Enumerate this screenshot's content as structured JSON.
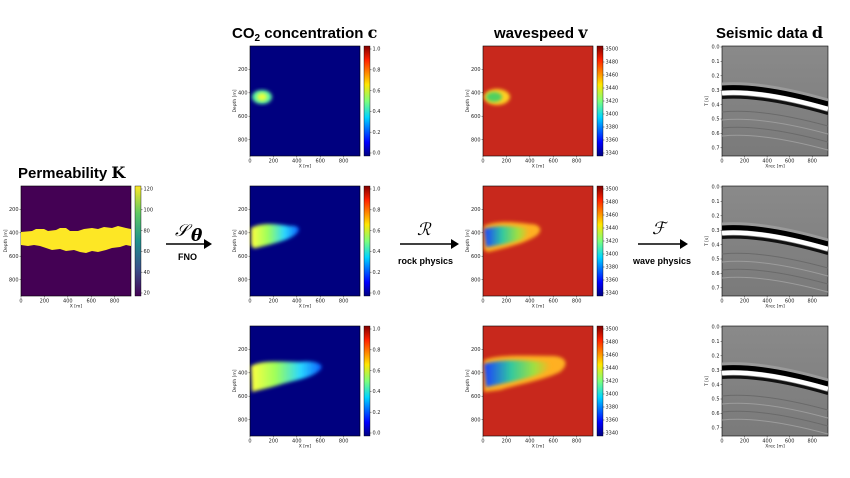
{
  "titles": {
    "permeability": "Permeability",
    "permeability_sym": "K",
    "co2_prefix": "CO",
    "co2_sub": "2",
    "co2_rest": " concentration",
    "co2_sym": "c",
    "wavespeed": "wavespeed",
    "wavespeed_sym": "v",
    "seismic": "Seismic data",
    "seismic_sym": "d"
  },
  "operators": {
    "fno_symbol": "𝒮",
    "fno_sub": "θ",
    "fno_label": "FNO",
    "rock_symbol": "ℛ",
    "rock_label": "rock physics",
    "wave_symbol": "ℱ",
    "wave_label": "wave physics"
  },
  "axes": {
    "depth_label": "Depth [m]",
    "x_label": "X [m]",
    "time_label": "T [s]",
    "xrec_label": "Xrec [m]",
    "x_ticks": [
      "0",
      "200",
      "400",
      "600",
      "800"
    ],
    "depth_ticks": [
      "200",
      "400",
      "600",
      "800"
    ],
    "time_ticks": [
      "0.0",
      "0.1",
      "0.2",
      "0.3",
      "0.4",
      "0.5",
      "0.6",
      "0.7"
    ],
    "perm_cbar_ticks": [
      "120",
      "100",
      "80",
      "60",
      "40",
      "20"
    ],
    "conc_cbar_ticks": [
      "1.0",
      "0.8",
      "0.6",
      "0.4",
      "0.2",
      "0.0"
    ],
    "ws_cbar_ticks": [
      "3500",
      "3480",
      "3460",
      "3440",
      "3420",
      "3400",
      "3380",
      "3360",
      "3340"
    ]
  },
  "colors": {
    "perm_low": "#440154",
    "perm_high": "#fde725",
    "conc_background": "#00007f",
    "ws_background": "#c8281c"
  }
}
